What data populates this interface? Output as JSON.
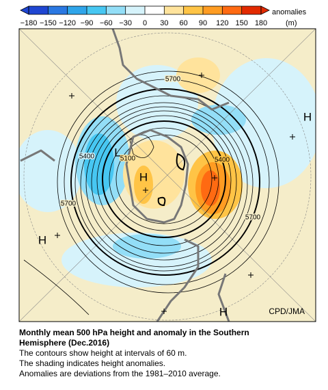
{
  "colorbar": {
    "title": "anomalies",
    "unit": "(m)",
    "ticks": [
      {
        "value": -180,
        "label": "−180"
      },
      {
        "value": -150,
        "label": "−150"
      },
      {
        "value": -120,
        "label": "−120"
      },
      {
        "value": -90,
        "label": "−90"
      },
      {
        "value": -60,
        "label": "−60"
      },
      {
        "value": -30,
        "label": "−30"
      },
      0,
      30,
      60,
      90,
      120,
      150,
      180
    ],
    "colors": [
      "#1f46d2",
      "#2a78e2",
      "#2fa5ea",
      "#47c7f2",
      "#93def7",
      "#d6f3fb",
      "#ffffff",
      "#ffe39c",
      "#ffc446",
      "#ff9c22",
      "#ff6a12",
      "#e22a00"
    ]
  },
  "map": {
    "contour_labels": [
      5700,
      5400,
      5100,
      5400,
      5700,
      5700
    ],
    "pressure_centers": [
      "H",
      "L",
      "H",
      "H",
      "H"
    ],
    "credit": "CPD/JMA"
  },
  "caption": {
    "title": "Monthly mean 500 hPa height and anomaly in the Southern Hemisphere (Dec.2016)",
    "lines": [
      "The contours show height at intervals of 60 m.",
      "The shading indicates height anomalies.",
      "Anomalies are deviations from the 1981–2010 average."
    ]
  }
}
